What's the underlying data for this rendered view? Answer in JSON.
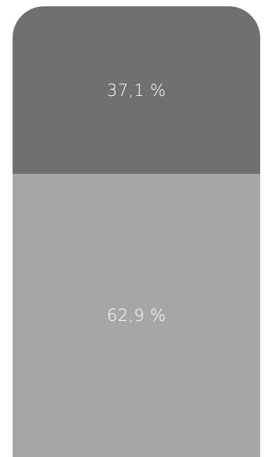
{
  "chart_data": {
    "type": "bar",
    "stacked": true,
    "orientation": "vertical",
    "series": [
      {
        "value": 37.1,
        "label": "37,1 %",
        "color": "#707070"
      },
      {
        "value": 62.9,
        "label": "62,9 %",
        "color": "#a6a6a6"
      }
    ],
    "total": 100,
    "grid": false,
    "legend": "none"
  }
}
